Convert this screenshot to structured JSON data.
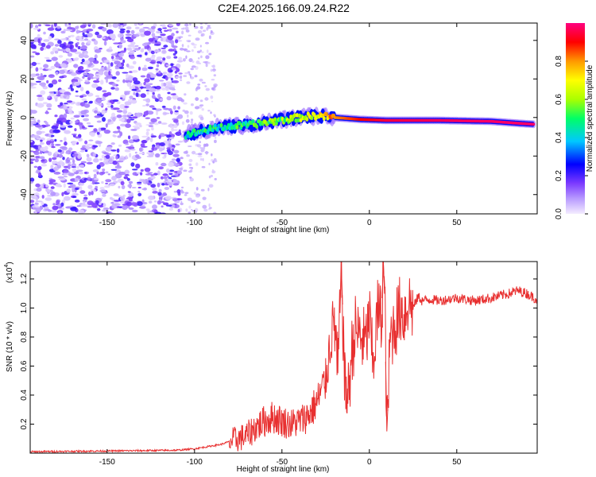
{
  "title": "C2E4.2025.166.09.24.R22",
  "chart_data": [
    {
      "type": "heatmap",
      "xlabel": "Height of straight line (km)",
      "ylabel": "Frequency (Hz)",
      "xlim": [
        -194,
        96
      ],
      "ylim": [
        -50,
        49
      ],
      "xticks": [
        -150,
        -100,
        -50,
        0,
        50
      ],
      "yticks": [
        -40,
        -20,
        0,
        20,
        40
      ],
      "colorbar": {
        "label": "Normalized spectral amplitude",
        "range": [
          0,
          1
        ],
        "ticks": [
          "0.0",
          "0.2",
          "0.4",
          "0.6",
          "0.8"
        ],
        "colors": [
          "#f4ecff",
          "#7c3aff",
          "#0000ff",
          "#00c8ff",
          "#00ff66",
          "#aaff00",
          "#ffff00",
          "#ff9900",
          "#ff0000",
          "#ff0080"
        ]
      },
      "features": {
        "noise_region_x": [
          -194,
          -108
        ],
        "sparse_noise_x": [
          -108,
          -88
        ],
        "signal_trace": [
          {
            "x": -105,
            "freq": -9,
            "amplitude": 0.45
          },
          {
            "x": -95,
            "freq": -7,
            "amplitude": 0.45
          },
          {
            "x": -85,
            "freq": -5,
            "amplitude": 0.45
          },
          {
            "x": -70,
            "freq": -4,
            "amplitude": 0.5
          },
          {
            "x": -55,
            "freq": -2,
            "amplitude": 0.55
          },
          {
            "x": -40,
            "freq": 0,
            "amplitude": 0.6
          },
          {
            "x": -30,
            "freq": 1,
            "amplitude": 0.7
          },
          {
            "x": -20,
            "freq": 0,
            "amplitude": 0.8
          },
          {
            "x": -5,
            "freq": -1,
            "amplitude": 0.9
          },
          {
            "x": 10,
            "freq": -1.5,
            "amplitude": 0.95
          },
          {
            "x": 40,
            "freq": -1.5,
            "amplitude": 0.97
          },
          {
            "x": 70,
            "freq": -2,
            "amplitude": 0.98
          },
          {
            "x": 85,
            "freq": -3,
            "amplitude": 0.98
          },
          {
            "x": 94,
            "freq": -3.5,
            "amplitude": 0.98
          }
        ]
      }
    },
    {
      "type": "line",
      "xlabel": "Height of straight line (km)",
      "ylabel": "SNR (10 * v/v)",
      "multiplier": "(x10",
      "multiplier_exp": "4",
      "xlim": [
        -194,
        96
      ],
      "ylim": [
        0,
        1.32
      ],
      "xticks": [
        -150,
        -100,
        -50,
        0,
        50
      ],
      "yticks": [
        0.2,
        0.4,
        0.6,
        0.8,
        1.0,
        1.2
      ],
      "color": "#e83030",
      "series": [
        {
          "x": [
            -194,
            -150,
            -110,
            -100,
            -95,
            -85,
            -80,
            -75,
            -70,
            -65,
            -60,
            -55,
            -50,
            -45,
            -40,
            -35,
            -30,
            -25,
            -22,
            -20,
            -18,
            -16,
            -14,
            -12,
            -10,
            -8,
            -5,
            -2,
            0,
            2,
            5,
            7,
            8,
            9,
            10,
            12,
            15,
            18,
            20,
            22,
            25,
            28,
            30,
            35,
            40,
            50,
            60,
            70,
            80,
            85,
            90,
            96
          ],
          "y": [
            0.01,
            0.015,
            0.02,
            0.03,
            0.04,
            0.06,
            0.08,
            0.1,
            0.12,
            0.18,
            0.22,
            0.25,
            0.22,
            0.2,
            0.22,
            0.26,
            0.35,
            0.5,
            0.8,
            0.92,
            0.55,
            1.27,
            0.45,
            0.4,
            0.7,
            0.85,
            0.8,
            0.75,
            0.95,
            0.6,
            1.0,
            0.9,
            1.32,
            0.95,
            0.15,
            0.8,
            0.9,
            1.0,
            0.95,
            1.05,
            1.0,
            1.08,
            1.05,
            1.06,
            1.05,
            1.07,
            1.05,
            1.07,
            1.1,
            1.12,
            1.1,
            1.06
          ]
        }
      ]
    }
  ]
}
